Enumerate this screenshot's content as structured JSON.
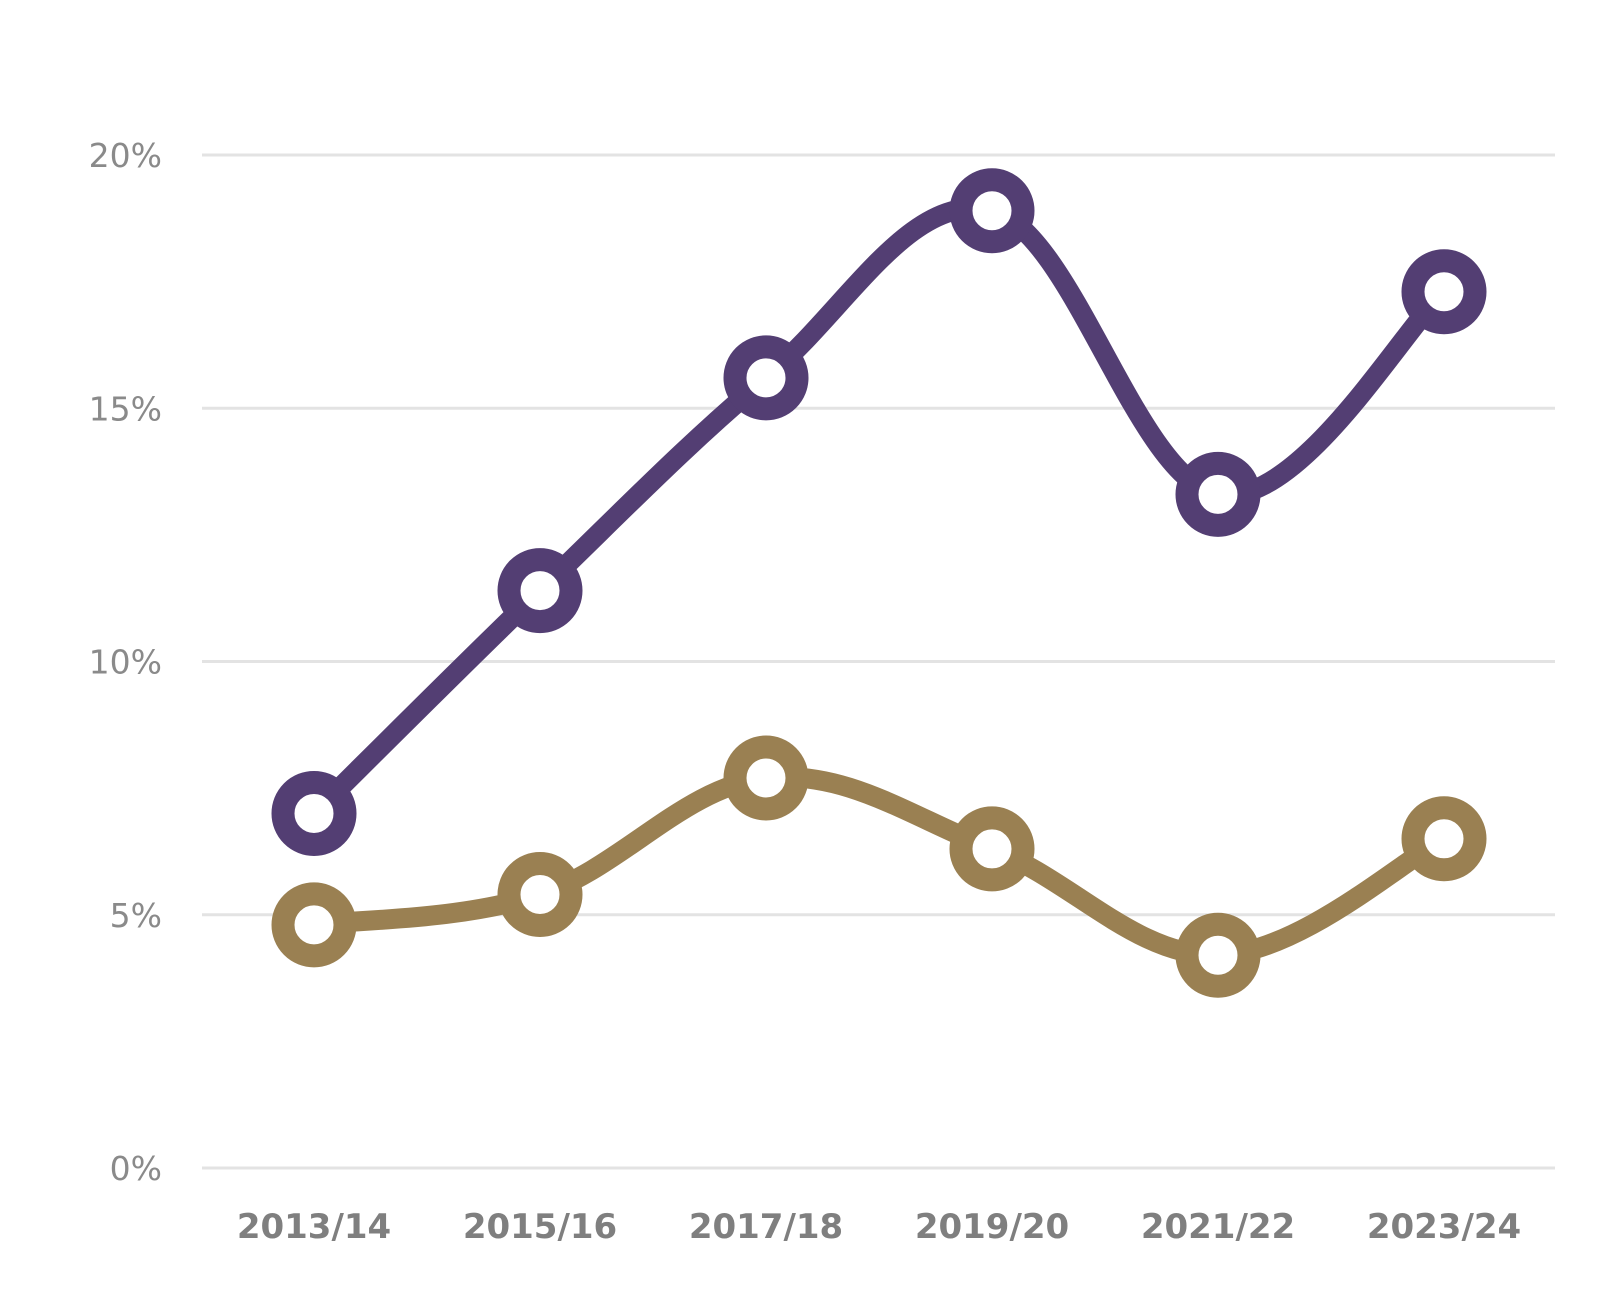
{
  "chart_data": {
    "type": "line",
    "title": "",
    "xlabel": "",
    "ylabel": "",
    "categories": [
      "2013/14",
      "2015/16",
      "2017/18",
      "2019/20",
      "2021/22",
      "2023/24"
    ],
    "ylim": [
      0,
      20
    ],
    "yticks": [
      0,
      5,
      10,
      15,
      20
    ],
    "ytick_labels": [
      "0%",
      "5%",
      "10%",
      "15%",
      "20%"
    ],
    "grid": true,
    "legend": "none",
    "series": [
      {
        "color": "#533e73",
        "values": [
          7.0,
          11.4,
          15.6,
          18.9,
          13.3,
          17.3
        ]
      },
      {
        "color": "#9a8052",
        "values": [
          4.8,
          5.4,
          7.7,
          6.3,
          4.2,
          6.5
        ]
      }
    ]
  }
}
